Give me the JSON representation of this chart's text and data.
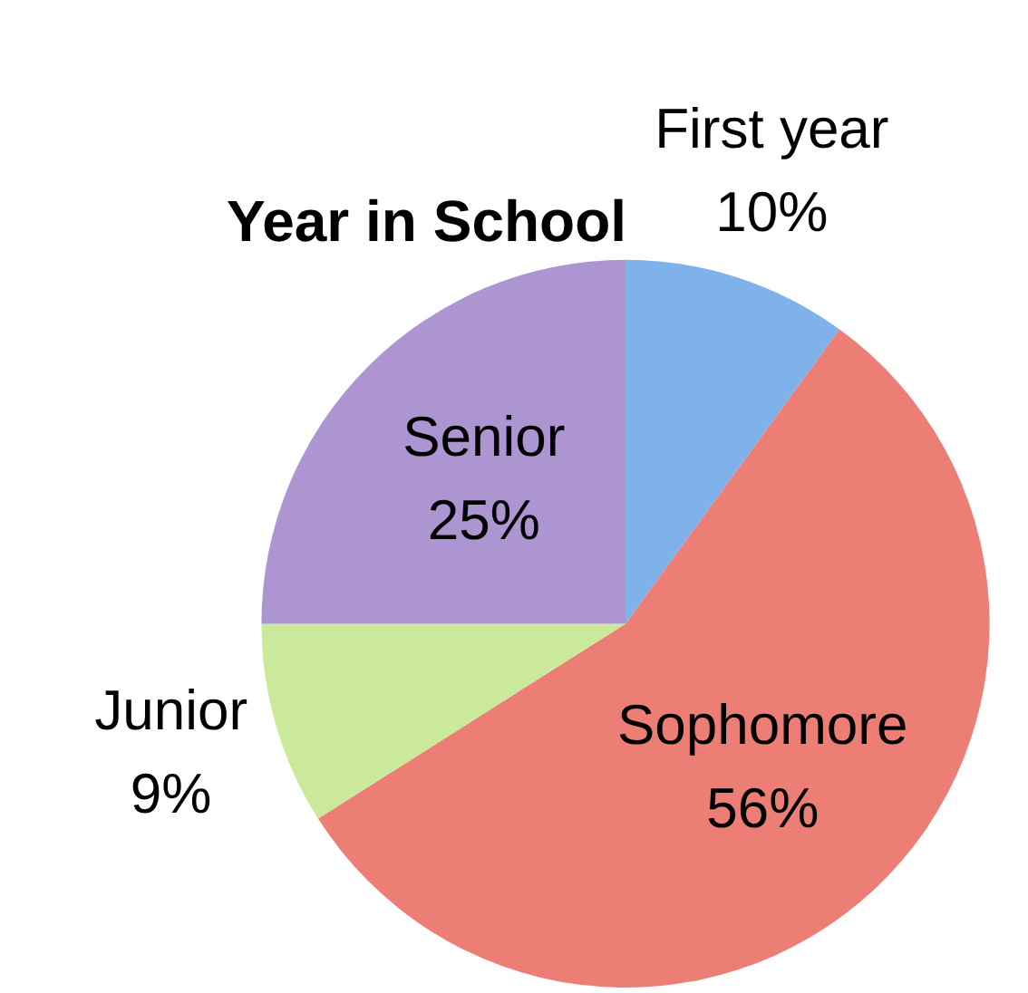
{
  "chart_data": {
    "type": "pie",
    "title": "Year in School",
    "categories": [
      "First year",
      "Sophomore",
      "Junior",
      "Senior"
    ],
    "values": [
      10,
      56,
      9,
      25
    ],
    "value_labels": [
      "10%",
      "56%",
      "9%",
      "25%"
    ],
    "colors": [
      "#7fb2ea",
      "#ec7e76",
      "#cbe99a",
      "#ac95d0"
    ],
    "legend": false
  }
}
